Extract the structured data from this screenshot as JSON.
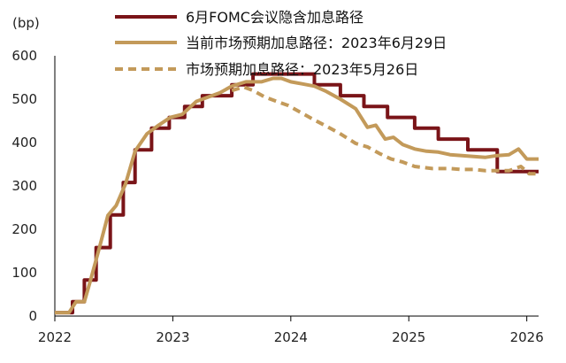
{
  "chart_data": {
    "type": "line",
    "ylabel": "(bp)",
    "xlabel": "",
    "title": "",
    "ylim": [
      0,
      600
    ],
    "yticks": [
      0,
      100,
      200,
      300,
      400,
      500,
      600
    ],
    "xlim": [
      2022.0,
      2026.1
    ],
    "xticks": [
      2022,
      2023,
      2024,
      2025,
      2026
    ],
    "grid": false,
    "legend_position": "top",
    "series": [
      {
        "name": "6月FOMC会议隐含加息路径",
        "color": "#7a1418",
        "style": "solid",
        "step": true,
        "points": [
          [
            2022.0,
            8
          ],
          [
            2022.15,
            8
          ],
          [
            2022.15,
            33
          ],
          [
            2022.25,
            33
          ],
          [
            2022.25,
            83
          ],
          [
            2022.35,
            83
          ],
          [
            2022.35,
            158
          ],
          [
            2022.47,
            158
          ],
          [
            2022.47,
            233
          ],
          [
            2022.58,
            233
          ],
          [
            2022.58,
            308
          ],
          [
            2022.68,
            308
          ],
          [
            2022.68,
            383
          ],
          [
            2022.82,
            383
          ],
          [
            2022.82,
            433
          ],
          [
            2022.97,
            433
          ],
          [
            2022.97,
            458
          ],
          [
            2023.1,
            458
          ],
          [
            2023.1,
            483
          ],
          [
            2023.25,
            483
          ],
          [
            2023.25,
            508
          ],
          [
            2023.5,
            508
          ],
          [
            2023.5,
            533
          ],
          [
            2023.68,
            533
          ],
          [
            2023.68,
            558
          ],
          [
            2024.2,
            558
          ],
          [
            2024.2,
            533
          ],
          [
            2024.42,
            533
          ],
          [
            2024.42,
            508
          ],
          [
            2024.62,
            508
          ],
          [
            2024.62,
            483
          ],
          [
            2024.82,
            483
          ],
          [
            2024.82,
            458
          ],
          [
            2025.05,
            458
          ],
          [
            2025.05,
            433
          ],
          [
            2025.25,
            433
          ],
          [
            2025.25,
            408
          ],
          [
            2025.5,
            408
          ],
          [
            2025.5,
            383
          ],
          [
            2025.75,
            383
          ],
          [
            2025.75,
            333
          ],
          [
            2026.1,
            333
          ]
        ]
      },
      {
        "name": "当前市场预期加息路径：2023年6月29日",
        "color": "#c39a5a",
        "style": "solid",
        "step": false,
        "points": [
          [
            2022.0,
            8
          ],
          [
            2022.12,
            8
          ],
          [
            2022.18,
            33
          ],
          [
            2022.25,
            33
          ],
          [
            2022.3,
            80
          ],
          [
            2022.38,
            160
          ],
          [
            2022.45,
            232
          ],
          [
            2022.52,
            255
          ],
          [
            2022.6,
            305
          ],
          [
            2022.68,
            380
          ],
          [
            2022.78,
            420
          ],
          [
            2022.88,
            440
          ],
          [
            2022.98,
            458
          ],
          [
            2023.08,
            465
          ],
          [
            2023.2,
            495
          ],
          [
            2023.3,
            505
          ],
          [
            2023.4,
            515
          ],
          [
            2023.5,
            530
          ],
          [
            2023.62,
            540
          ],
          [
            2023.75,
            540
          ],
          [
            2023.85,
            548
          ],
          [
            2023.92,
            548
          ],
          [
            2024.0,
            540
          ],
          [
            2024.1,
            535
          ],
          [
            2024.2,
            530
          ],
          [
            2024.3,
            518
          ],
          [
            2024.42,
            500
          ],
          [
            2024.55,
            478
          ],
          [
            2024.65,
            435
          ],
          [
            2024.72,
            440
          ],
          [
            2024.8,
            408
          ],
          [
            2024.87,
            412
          ],
          [
            2024.95,
            395
          ],
          [
            2025.05,
            385
          ],
          [
            2025.15,
            380
          ],
          [
            2025.25,
            378
          ],
          [
            2025.35,
            372
          ],
          [
            2025.45,
            370
          ],
          [
            2025.55,
            368
          ],
          [
            2025.65,
            366
          ],
          [
            2025.75,
            370
          ],
          [
            2025.85,
            372
          ],
          [
            2025.93,
            385
          ],
          [
            2026.0,
            362
          ],
          [
            2026.1,
            362
          ]
        ]
      },
      {
        "name": "市场预期加息路径：2023年5月26日",
        "color": "#c39a5a",
        "style": "dashed",
        "step": false,
        "points": [
          [
            2023.5,
            520
          ],
          [
            2023.6,
            528
          ],
          [
            2023.68,
            520
          ],
          [
            2023.78,
            505
          ],
          [
            2023.88,
            495
          ],
          [
            2023.98,
            485
          ],
          [
            2024.08,
            470
          ],
          [
            2024.18,
            455
          ],
          [
            2024.3,
            438
          ],
          [
            2024.42,
            420
          ],
          [
            2024.55,
            398
          ],
          [
            2024.65,
            390
          ],
          [
            2024.75,
            375
          ],
          [
            2024.85,
            362
          ],
          [
            2024.95,
            355
          ],
          [
            2025.05,
            345
          ],
          [
            2025.2,
            340
          ],
          [
            2025.35,
            340
          ],
          [
            2025.45,
            338
          ],
          [
            2025.55,
            338
          ],
          [
            2025.65,
            335
          ],
          [
            2025.75,
            335
          ],
          [
            2025.85,
            335
          ],
          [
            2025.95,
            345
          ],
          [
            2026.02,
            328
          ],
          [
            2026.1,
            328
          ]
        ]
      }
    ]
  }
}
